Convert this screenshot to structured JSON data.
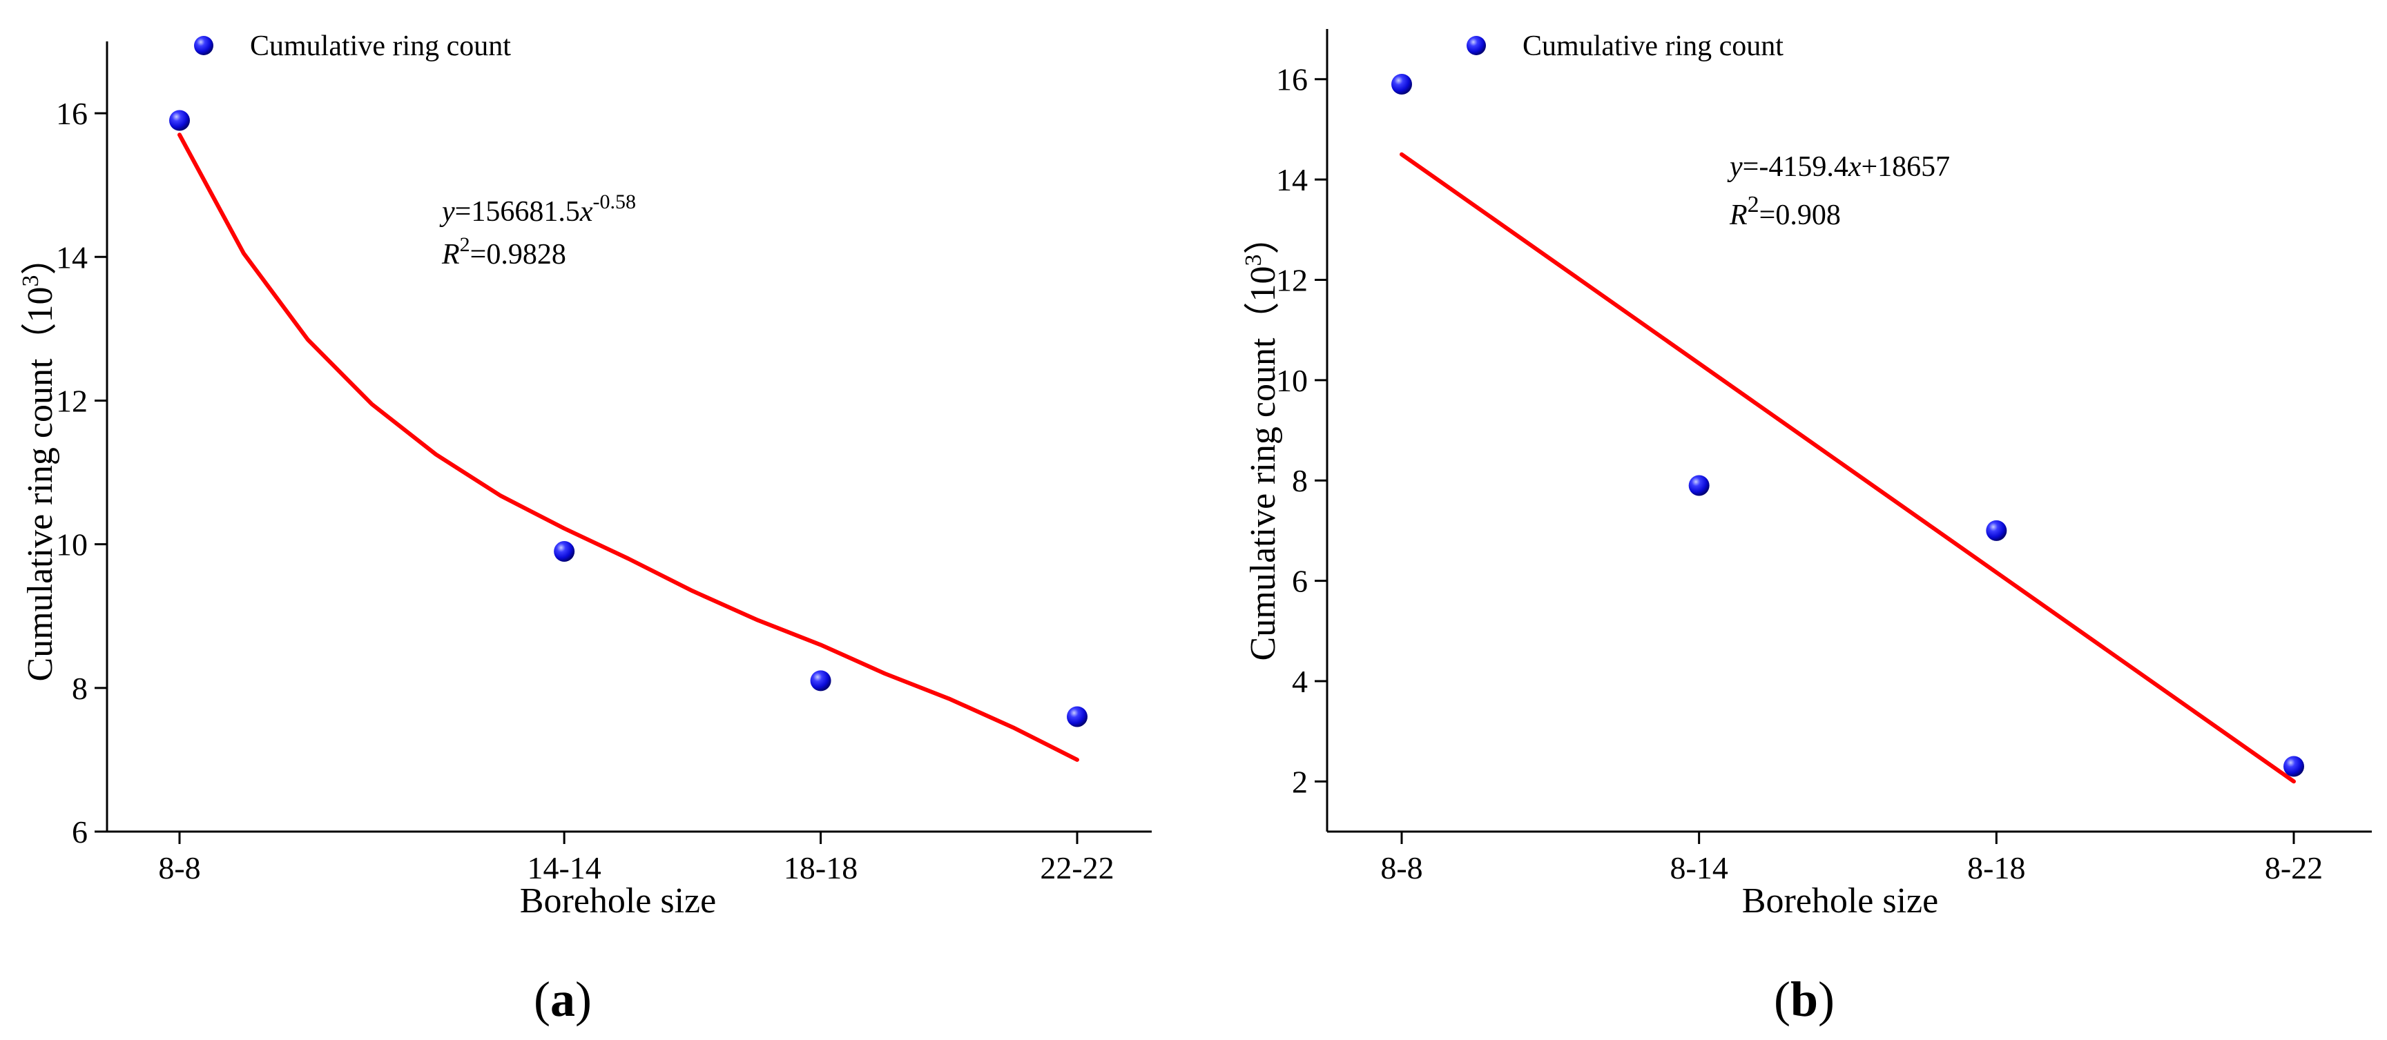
{
  "chart_data": [
    {
      "panel_label": "(a)",
      "panel_letter": "a",
      "type": "scatter",
      "xlabel": "Borehole size",
      "ylabel": "Cumulative ring count",
      "ylabel_unit_base": "10",
      "ylabel_unit_exp": "3",
      "categories": [
        "8-8",
        "14-14",
        "18-18",
        "22-22"
      ],
      "x": [
        8,
        14,
        18,
        22
      ],
      "ylim": [
        6,
        17
      ],
      "yticks": [
        6,
        8,
        10,
        12,
        14,
        16
      ],
      "legend": "Cumulative ring count",
      "series": [
        {
          "name": "Cumulative ring count",
          "values": [
            15.9,
            9.9,
            8.1,
            7.6
          ]
        }
      ],
      "fit": {
        "type": "power",
        "curve_x": [
          8,
          9,
          10,
          11,
          12,
          13,
          14,
          15,
          16,
          17,
          18,
          19,
          20,
          21,
          22
        ],
        "curve_y": [
          15.7,
          14.05,
          12.85,
          11.95,
          11.25,
          10.68,
          10.22,
          9.8,
          9.35,
          8.95,
          8.6,
          8.2,
          7.85,
          7.45,
          7.0
        ]
      },
      "equation": {
        "y_var": "y",
        "y_rhs": "=156681.5",
        "x_var": "x",
        "x_exp": "-0.58",
        "r_var": "R",
        "r_exp": "2",
        "r_value": "=0.9828"
      }
    },
    {
      "panel_label": "(b)",
      "panel_letter": "b",
      "type": "scatter",
      "xlabel": "Borehole size",
      "ylabel": "Cumulative ring count",
      "ylabel_unit_base": "10",
      "ylabel_unit_exp": "3",
      "categories": [
        "8-8",
        "8-14",
        "8-18",
        "8-22"
      ],
      "x": [
        1,
        2,
        3,
        4
      ],
      "ylim": [
        1,
        17
      ],
      "yticks": [
        2,
        4,
        6,
        8,
        10,
        12,
        14,
        16
      ],
      "legend": "Cumulative ring count",
      "series": [
        {
          "name": "Cumulative ring count",
          "values": [
            15.9,
            7.9,
            7.0,
            2.3
          ]
        }
      ],
      "fit": {
        "type": "linear",
        "curve_x": [
          1,
          4
        ],
        "curve_y": [
          14.5,
          2.0
        ]
      },
      "equation": {
        "y_var": "y",
        "y_rhs": "=-4159.4",
        "x_var": "x",
        "x_rhs": "+18657",
        "r_var": "R",
        "r_exp": "2",
        "r_value": "=0.908"
      }
    }
  ]
}
